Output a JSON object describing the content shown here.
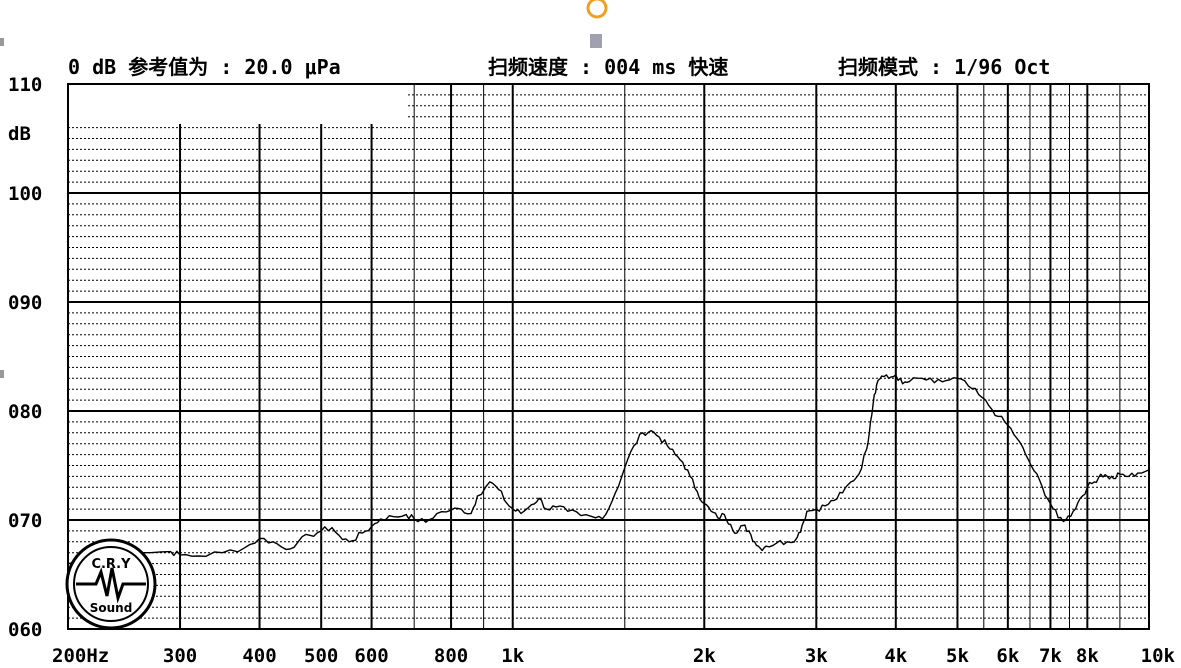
{
  "header": {
    "ref_label": "0 dB 参考值为 : 20.0 μPa",
    "sweep_speed_label": "扫频速度 : 004 ms 快速",
    "sweep_mode_label": "扫频模式 : 1/96  Oct"
  },
  "logo": {
    "top": "C.R.Y",
    "bottom": "Sound"
  },
  "chart_data": {
    "type": "line",
    "title": "",
    "xlabel": "",
    "ylabel": "dB",
    "x_scale": "log",
    "xlim": [
      200,
      10000
    ],
    "ylim": [
      60,
      110
    ],
    "grid": true,
    "y_ticks": [
      {
        "value": 110,
        "label": "110"
      },
      {
        "value": 100,
        "label": "100"
      },
      {
        "value": 90,
        "label": "090"
      },
      {
        "value": 80,
        "label": "080"
      },
      {
        "value": 70,
        "label": "070"
      },
      {
        "value": 60,
        "label": "060"
      }
    ],
    "x_ticks": [
      {
        "value": 200,
        "label": "200Hz"
      },
      {
        "value": 300,
        "label": "300"
      },
      {
        "value": 400,
        "label": "400"
      },
      {
        "value": 500,
        "label": "500"
      },
      {
        "value": 600,
        "label": "600"
      },
      {
        "value": 800,
        "label": "800"
      },
      {
        "value": 1000,
        "label": "1k"
      },
      {
        "value": 2000,
        "label": "2k"
      },
      {
        "value": 3000,
        "label": "3k"
      },
      {
        "value": 4000,
        "label": "4k"
      },
      {
        "value": 5000,
        "label": "5k"
      },
      {
        "value": 6000,
        "label": "6k"
      },
      {
        "value": 7000,
        "label": "7k"
      },
      {
        "value": 8000,
        "label": "8k"
      },
      {
        "value": 10000,
        "label": "10k"
      }
    ],
    "series": [
      {
        "color": "#000000",
        "points": [
          [
            200,
            66.0
          ],
          [
            230,
            66.6
          ],
          [
            260,
            67.0
          ],
          [
            290,
            67.1
          ],
          [
            300,
            66.8
          ],
          [
            320,
            66.7
          ],
          [
            350,
            67.0
          ],
          [
            380,
            67.5
          ],
          [
            400,
            68.3
          ],
          [
            420,
            68.0
          ],
          [
            440,
            67.3
          ],
          [
            460,
            68.0
          ],
          [
            480,
            68.6
          ],
          [
            500,
            69.0
          ],
          [
            520,
            69.3
          ],
          [
            540,
            68.2
          ],
          [
            560,
            68.1
          ],
          [
            580,
            68.8
          ],
          [
            600,
            69.4
          ],
          [
            620,
            70.1
          ],
          [
            650,
            70.3
          ],
          [
            680,
            70.5
          ],
          [
            700,
            70.1
          ],
          [
            730,
            69.8
          ],
          [
            760,
            70.6
          ],
          [
            800,
            70.9
          ],
          [
            830,
            71.0
          ],
          [
            860,
            70.6
          ],
          [
            880,
            72.2
          ],
          [
            920,
            73.5
          ],
          [
            950,
            72.8
          ],
          [
            980,
            71.5
          ],
          [
            1000,
            71.0
          ],
          [
            1030,
            70.6
          ],
          [
            1070,
            71.4
          ],
          [
            1100,
            72.0
          ],
          [
            1130,
            71.0
          ],
          [
            1170,
            71.2
          ],
          [
            1220,
            70.8
          ],
          [
            1280,
            70.4
          ],
          [
            1350,
            70.2
          ],
          [
            1400,
            70.5
          ],
          [
            1450,
            72.5
          ],
          [
            1500,
            74.8
          ],
          [
            1550,
            76.8
          ],
          [
            1600,
            78.0
          ],
          [
            1650,
            78.2
          ],
          [
            1700,
            77.6
          ],
          [
            1750,
            76.8
          ],
          [
            1800,
            76.0
          ],
          [
            1850,
            75.3
          ],
          [
            1900,
            74.0
          ],
          [
            1950,
            72.6
          ],
          [
            2000,
            71.5
          ],
          [
            2050,
            70.8
          ],
          [
            2100,
            70.2
          ],
          [
            2150,
            70.5
          ],
          [
            2200,
            69.6
          ],
          [
            2250,
            68.8
          ],
          [
            2300,
            69.5
          ],
          [
            2350,
            69.0
          ],
          [
            2400,
            68.0
          ],
          [
            2450,
            67.4
          ],
          [
            2500,
            67.6
          ],
          [
            2600,
            67.9
          ],
          [
            2700,
            68.0
          ],
          [
            2800,
            68.4
          ],
          [
            2850,
            69.5
          ],
          [
            2900,
            70.8
          ],
          [
            3000,
            71.0
          ],
          [
            3100,
            71.3
          ],
          [
            3200,
            71.8
          ],
          [
            3300,
            72.5
          ],
          [
            3400,
            73.5
          ],
          [
            3500,
            74.2
          ],
          [
            3600,
            76.5
          ],
          [
            3650,
            79.0
          ],
          [
            3700,
            81.5
          ],
          [
            3750,
            82.8
          ],
          [
            3800,
            83.2
          ],
          [
            3900,
            83.0
          ],
          [
            4000,
            83.3
          ],
          [
            4100,
            82.5
          ],
          [
            4200,
            82.7
          ],
          [
            4400,
            83.0
          ],
          [
            4600,
            82.6
          ],
          [
            4800,
            82.8
          ],
          [
            5000,
            83.0
          ],
          [
            5200,
            82.3
          ],
          [
            5400,
            81.5
          ],
          [
            5600,
            80.5
          ],
          [
            5800,
            79.5
          ],
          [
            6000,
            78.7
          ],
          [
            6200,
            77.5
          ],
          [
            6400,
            76.0
          ],
          [
            6600,
            74.5
          ],
          [
            6800,
            73.0
          ],
          [
            7000,
            71.5
          ],
          [
            7200,
            70.2
          ],
          [
            7400,
            70.0
          ],
          [
            7600,
            70.8
          ],
          [
            7800,
            72.0
          ],
          [
            8000,
            73.0
          ],
          [
            8200,
            73.5
          ],
          [
            8400,
            74.2
          ],
          [
            8600,
            74.0
          ],
          [
            8800,
            73.8
          ],
          [
            9000,
            74.2
          ],
          [
            9300,
            74.0
          ],
          [
            9600,
            74.3
          ],
          [
            10000,
            74.6
          ]
        ]
      }
    ]
  }
}
